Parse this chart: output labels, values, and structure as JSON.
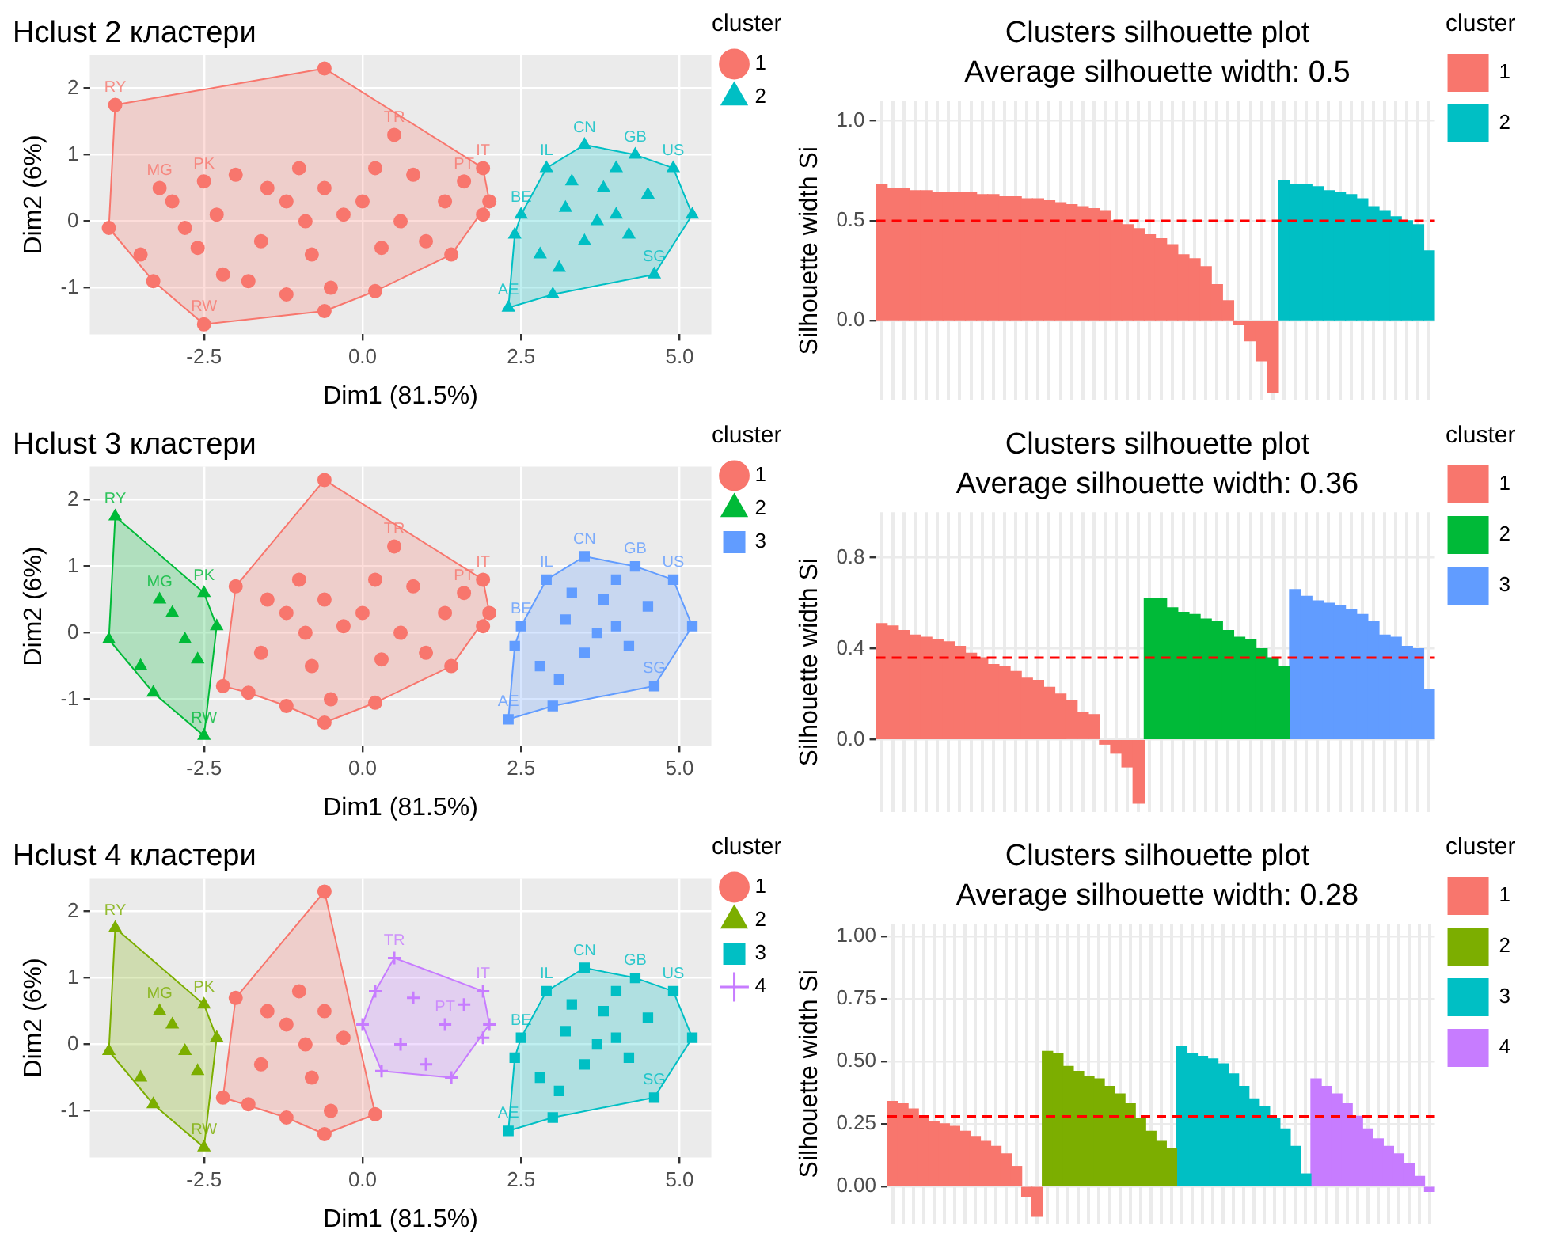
{
  "chart_data": [
    {
      "type": "scatter",
      "title": "Hclust 2 кластери",
      "xlabel": "Dim1 (81.5%)",
      "ylabel": "Dim2 (6%)",
      "legend_title": "cluster",
      "legend": "right",
      "grid": true,
      "xlim": [
        -4.3,
        5.5
      ],
      "xticks": [
        {
          "value": -2.5,
          "label": "-2.5"
        },
        {
          "value": 0,
          "label": "0.0"
        },
        {
          "value": 2.5,
          "label": "2.5"
        },
        {
          "value": 5,
          "label": "5.0"
        }
      ],
      "ylim": [
        -1.7,
        2.5
      ],
      "yticks": [
        -1,
        0,
        1,
        2
      ],
      "series": [
        {
          "type": "area",
          "color": "#f8766d",
          "x": [
            -3.9,
            -0.6,
            1.9,
            2.0,
            1.4,
            0.2,
            -0.6,
            -2.5,
            -3.3,
            -4.0,
            -3.9
          ],
          "values": [
            1.75,
            2.3,
            0.8,
            0.3,
            -0.5,
            -1.05,
            -1.35,
            -1.55,
            -0.9,
            -0.1,
            1.75
          ]
        },
        {
          "type": "area",
          "color": "#00bfc4",
          "x": [
            2.9,
            3.5,
            4.3,
            4.9,
            5.2,
            4.6,
            3.0,
            2.3,
            2.4,
            2.5,
            2.9
          ],
          "values": [
            0.8,
            1.15,
            1.0,
            0.8,
            0.1,
            -0.8,
            -1.1,
            -1.3,
            -0.2,
            0.1,
            0.8
          ]
        },
        {
          "name": "1",
          "color": "#f8766d",
          "marker": "circle",
          "x": [
            -3.9,
            -0.6,
            0.5,
            1.9,
            2.0,
            1.9,
            1.4,
            0.2,
            -0.6,
            -2.5,
            -3.3,
            -4.0,
            -3.5,
            -3.2,
            -3.0,
            -2.8,
            -2.5,
            -2.3,
            -2.2,
            -2.0,
            -1.8,
            -1.5,
            -1.2,
            -1.2,
            -1.0,
            -0.9,
            -0.8,
            -0.6,
            -0.5,
            -0.3,
            0.0,
            0.2,
            0.3,
            0.6,
            0.8,
            1.0,
            1.3,
            1.6,
            -1.6,
            -2.6
          ],
          "values": [
            1.75,
            2.3,
            1.3,
            0.8,
            0.3,
            0.1,
            -0.5,
            -1.05,
            -1.35,
            -1.55,
            -0.9,
            -0.1,
            -0.5,
            0.5,
            0.3,
            -0.1,
            0.6,
            0.1,
            -0.8,
            0.7,
            -0.9,
            0.5,
            0.3,
            -1.1,
            0.8,
            0.0,
            -0.5,
            0.5,
            -1.0,
            0.1,
            0.3,
            0.8,
            -0.4,
            0.0,
            0.7,
            -0.3,
            0.3,
            0.6,
            -0.3,
            -0.4
          ]
        },
        {
          "name": "2",
          "color": "#00bfc4",
          "marker": "triangle",
          "x": [
            2.9,
            3.5,
            4.3,
            4.9,
            5.2,
            4.6,
            3.0,
            2.3,
            2.4,
            2.5,
            3.2,
            3.5,
            3.8,
            4.0,
            4.2,
            2.8,
            3.1,
            3.7,
            4.5,
            4.0,
            3.3
          ],
          "values": [
            0.8,
            1.15,
            1.0,
            0.8,
            0.1,
            -0.8,
            -1.1,
            -1.3,
            -0.2,
            0.1,
            0.2,
            -0.3,
            0.5,
            0.1,
            -0.2,
            -0.5,
            -0.7,
            0.0,
            0.4,
            0.8,
            0.6
          ]
        }
      ],
      "annotations": [
        {
          "text": "RY",
          "x": -3.9,
          "y": 1.75
        },
        {
          "text": "PK",
          "x": -2.5,
          "y": 0.6
        },
        {
          "text": "MG",
          "x": -3.2,
          "y": 0.5
        },
        {
          "text": "RW",
          "x": -2.5,
          "y": -1.55
        },
        {
          "text": "TR",
          "x": 0.5,
          "y": 1.3
        },
        {
          "text": "IT",
          "x": 1.9,
          "y": 0.8
        },
        {
          "text": "PT",
          "x": 1.6,
          "y": 0.6
        },
        {
          "text": "IL",
          "x": 2.9,
          "y": 0.8
        },
        {
          "text": "CN",
          "x": 3.5,
          "y": 1.15
        },
        {
          "text": "GB",
          "x": 4.3,
          "y": 1.0
        },
        {
          "text": "US",
          "x": 4.9,
          "y": 0.8
        },
        {
          "text": "BE",
          "x": 2.5,
          "y": 0.1
        },
        {
          "text": "AE",
          "x": 2.3,
          "y": -1.3
        },
        {
          "text": "SG",
          "x": 4.6,
          "y": -0.8
        }
      ]
    },
    {
      "type": "bar",
      "title": "Clusters silhouette plot",
      "subtitle": "Average silhouette width: 0.5",
      "ylabel": "Silhouette width Si",
      "legend_title": "cluster",
      "legend": "right",
      "grid": true,
      "tick_labels": "y",
      "categories": [
        null,
        null,
        null,
        null,
        null,
        null,
        null,
        null,
        null,
        null,
        null,
        null,
        null,
        null,
        null,
        null,
        null,
        null,
        null,
        null,
        null,
        null,
        null,
        null,
        null,
        null,
        null,
        null,
        null,
        null,
        null,
        null,
        null,
        null,
        null,
        null,
        null,
        null,
        null,
        null,
        null,
        null,
        null,
        null,
        null,
        null,
        null,
        null,
        null,
        null
      ],
      "ylim": [
        -0.4,
        1.1
      ],
      "yticks": [
        {
          "value": 0,
          "label": "0.0"
        },
        0.5,
        {
          "value": 1,
          "label": "1.0"
        }
      ],
      "ref_lines": [
        {
          "axis": "y",
          "value": 0.5,
          "color": "#ff0000",
          "line_style": "dashed"
        }
      ],
      "series": [
        {
          "name": "1",
          "color": "#f8766d",
          "values": [
            0.68,
            0.66,
            0.66,
            0.65,
            0.65,
            0.64,
            0.64,
            0.64,
            0.64,
            0.63,
            0.63,
            0.62,
            0.62,
            0.61,
            0.61,
            0.6,
            0.59,
            0.58,
            0.57,
            0.56,
            0.55,
            0.5,
            0.48,
            0.46,
            0.43,
            0.41,
            0.38,
            0.33,
            0.31,
            0.27,
            0.18,
            0.1,
            -0.02,
            -0.1,
            -0.2,
            -0.36,
            null,
            null,
            null,
            null,
            null,
            null,
            null,
            null,
            null,
            null,
            null,
            null,
            null,
            null
          ]
        },
        {
          "name": "2",
          "color": "#00bfc4",
          "values": [
            null,
            null,
            null,
            null,
            null,
            null,
            null,
            null,
            null,
            null,
            null,
            null,
            null,
            null,
            null,
            null,
            null,
            null,
            null,
            null,
            null,
            null,
            null,
            null,
            null,
            null,
            null,
            null,
            null,
            null,
            null,
            null,
            null,
            null,
            null,
            null,
            0.7,
            0.68,
            0.68,
            0.67,
            0.65,
            0.64,
            0.63,
            0.61,
            0.57,
            0.55,
            0.52,
            0.5,
            0.48,
            0.35
          ]
        }
      ]
    },
    {
      "type": "scatter",
      "title": "Hclust 3 кластери",
      "xlabel": "Dim1 (81.5%)",
      "ylabel": "Dim2 (6%)",
      "legend_title": "cluster",
      "legend": "right",
      "grid": true,
      "xlim": [
        -4.3,
        5.5
      ],
      "xticks": [
        {
          "value": -2.5,
          "label": "-2.5"
        },
        {
          "value": 0,
          "label": "0.0"
        },
        {
          "value": 2.5,
          "label": "2.5"
        },
        {
          "value": 5,
          "label": "5.0"
        }
      ],
      "ylim": [
        -1.7,
        2.5
      ],
      "yticks": [
        -1,
        0,
        1,
        2
      ],
      "series": [
        {
          "type": "area",
          "color": "#f8766d",
          "x": [
            -0.6,
            1.9,
            2.0,
            1.4,
            0.2,
            -0.6,
            -1.2,
            -1.8,
            -2.2,
            -2.0,
            -0.6
          ],
          "values": [
            2.3,
            0.8,
            0.3,
            -0.5,
            -1.05,
            -1.35,
            -1.1,
            -0.9,
            -0.8,
            0.7,
            2.3
          ]
        },
        {
          "type": "area",
          "color": "#00ba38",
          "x": [
            -3.9,
            -2.5,
            -2.3,
            -2.5,
            -3.3,
            -4.0,
            -3.9
          ],
          "values": [
            1.75,
            0.6,
            0.1,
            -1.55,
            -0.9,
            -0.1,
            1.75
          ]
        },
        {
          "type": "area",
          "color": "#619cff",
          "x": [
            2.9,
            3.5,
            4.3,
            4.9,
            5.2,
            4.6,
            3.0,
            2.3,
            2.4,
            2.5,
            2.9
          ],
          "values": [
            0.8,
            1.15,
            1.0,
            0.8,
            0.1,
            -0.8,
            -1.1,
            -1.3,
            -0.2,
            0.1,
            0.8
          ]
        },
        {
          "name": "1",
          "color": "#f8766d",
          "marker": "circle",
          "x": [
            -0.6,
            0.5,
            1.9,
            2.0,
            1.9,
            1.4,
            0.2,
            -0.6,
            -2.2,
            -2.0,
            -1.8,
            -1.5,
            -1.2,
            -1.2,
            -1.0,
            -0.9,
            -0.8,
            -0.6,
            -0.5,
            -0.3,
            0.0,
            0.2,
            0.3,
            0.6,
            0.8,
            1.0,
            1.3,
            1.6,
            -1.6
          ],
          "values": [
            2.3,
            1.3,
            0.8,
            0.3,
            0.1,
            -0.5,
            -1.05,
            -1.35,
            -0.8,
            0.7,
            -0.9,
            0.5,
            0.3,
            -1.1,
            0.8,
            0.0,
            -0.5,
            0.5,
            -1.0,
            0.1,
            0.3,
            0.8,
            -0.4,
            0.0,
            0.7,
            -0.3,
            0.3,
            0.6,
            -0.3
          ]
        },
        {
          "name": "2",
          "color": "#00ba38",
          "marker": "triangle",
          "x": [
            -3.9,
            -2.5,
            -3.3,
            -4.0,
            -3.5,
            -3.2,
            -3.0,
            -2.8,
            -2.5,
            -2.3,
            -2.6
          ],
          "values": [
            1.75,
            -1.55,
            -0.9,
            -0.1,
            -0.5,
            0.5,
            0.3,
            -0.1,
            0.6,
            0.1,
            -0.4
          ]
        },
        {
          "name": "3",
          "color": "#619cff",
          "marker": "square",
          "x": [
            2.9,
            3.5,
            4.3,
            4.9,
            5.2,
            4.6,
            3.0,
            2.3,
            2.4,
            2.5,
            3.2,
            3.5,
            3.8,
            4.0,
            4.2,
            2.8,
            3.1,
            3.7,
            4.5,
            4.0,
            3.3
          ],
          "values": [
            0.8,
            1.15,
            1.0,
            0.8,
            0.1,
            -0.8,
            -1.1,
            -1.3,
            -0.2,
            0.1,
            0.2,
            -0.3,
            0.5,
            0.1,
            -0.2,
            -0.5,
            -0.7,
            0.0,
            0.4,
            0.8,
            0.6
          ]
        }
      ],
      "annotations": [
        {
          "text": "RY",
          "x": -3.9,
          "y": 1.75
        },
        {
          "text": "PK",
          "x": -2.5,
          "y": 0.6
        },
        {
          "text": "MG",
          "x": -3.2,
          "y": 0.5
        },
        {
          "text": "RW",
          "x": -2.5,
          "y": -1.55
        },
        {
          "text": "TR",
          "x": 0.5,
          "y": 1.3
        },
        {
          "text": "IT",
          "x": 1.9,
          "y": 0.8
        },
        {
          "text": "PT",
          "x": 1.6,
          "y": 0.6
        },
        {
          "text": "IL",
          "x": 2.9,
          "y": 0.8
        },
        {
          "text": "CN",
          "x": 3.5,
          "y": 1.15
        },
        {
          "text": "GB",
          "x": 4.3,
          "y": 1.0
        },
        {
          "text": "US",
          "x": 4.9,
          "y": 0.8
        },
        {
          "text": "BE",
          "x": 2.5,
          "y": 0.1
        },
        {
          "text": "AE",
          "x": 2.3,
          "y": -1.3
        },
        {
          "text": "SG",
          "x": 4.6,
          "y": -0.8
        }
      ]
    },
    {
      "type": "bar",
      "title": "Clusters silhouette plot",
      "subtitle": "Average silhouette width: 0.36",
      "ylabel": "Silhouette width Si",
      "legend_title": "cluster",
      "legend": "right",
      "grid": true,
      "tick_labels": "y",
      "categories": [
        null,
        null,
        null,
        null,
        null,
        null,
        null,
        null,
        null,
        null,
        null,
        null,
        null,
        null,
        null,
        null,
        null,
        null,
        null,
        null,
        null,
        null,
        null,
        null,
        null,
        null,
        null,
        null,
        null,
        null,
        null,
        null,
        null,
        null,
        null,
        null,
        null,
        null,
        null,
        null,
        null,
        null,
        null,
        null,
        null,
        null,
        null,
        null,
        null,
        null
      ],
      "ylim": [
        -0.32,
        1.0
      ],
      "yticks": [
        {
          "value": 0,
          "label": "0.0"
        },
        0.4,
        0.8
      ],
      "ref_lines": [
        {
          "axis": "y",
          "value": 0.36,
          "color": "#ff0000",
          "line_style": "dashed"
        }
      ],
      "series": [
        {
          "name": "1",
          "color": "#f8766d",
          "values": [
            0.51,
            0.5,
            0.48,
            0.46,
            0.45,
            0.44,
            0.43,
            0.41,
            0.38,
            0.36,
            0.33,
            0.32,
            0.3,
            0.27,
            0.26,
            0.23,
            0.2,
            0.17,
            0.12,
            0.11,
            -0.02,
            -0.06,
            -0.12,
            -0.28,
            null,
            null,
            null,
            null,
            null,
            null,
            null,
            null,
            null,
            null,
            null,
            null,
            null,
            null,
            null,
            null,
            null,
            null,
            null,
            null,
            null,
            null,
            null,
            null,
            null,
            null
          ]
        },
        {
          "name": "2",
          "color": "#00ba38",
          "values": [
            null,
            null,
            null,
            null,
            null,
            null,
            null,
            null,
            null,
            null,
            null,
            null,
            null,
            null,
            null,
            null,
            null,
            null,
            null,
            null,
            null,
            null,
            null,
            null,
            0.62,
            0.62,
            0.58,
            0.56,
            0.55,
            0.53,
            0.52,
            0.48,
            0.45,
            0.44,
            0.4,
            0.36,
            0.32,
            null,
            null,
            null,
            null,
            null,
            null,
            null,
            null,
            null,
            null,
            null,
            null,
            null
          ]
        },
        {
          "name": "3",
          "color": "#619cff",
          "values": [
            null,
            null,
            null,
            null,
            null,
            null,
            null,
            null,
            null,
            null,
            null,
            null,
            null,
            null,
            null,
            null,
            null,
            null,
            null,
            null,
            null,
            null,
            null,
            null,
            null,
            null,
            null,
            null,
            null,
            null,
            null,
            null,
            null,
            null,
            null,
            null,
            null,
            0.66,
            0.63,
            0.61,
            0.6,
            0.59,
            0.57,
            0.55,
            0.52,
            0.46,
            0.45,
            0.41,
            0.4,
            0.22
          ]
        }
      ]
    },
    {
      "type": "scatter",
      "title": "Hclust 4 кластери",
      "xlabel": "Dim1 (81.5%)",
      "ylabel": "Dim2 (6%)",
      "legend_title": "cluster",
      "legend": "right",
      "grid": true,
      "xlim": [
        -4.3,
        5.5
      ],
      "xticks": [
        {
          "value": -2.5,
          "label": "-2.5"
        },
        {
          "value": 0,
          "label": "0.0"
        },
        {
          "value": 2.5,
          "label": "2.5"
        },
        {
          "value": 5,
          "label": "5.0"
        }
      ],
      "ylim": [
        -1.7,
        2.5
      ],
      "yticks": [
        -1,
        0,
        1,
        2
      ],
      "series": [
        {
          "type": "area",
          "color": "#f8766d",
          "x": [
            -0.6,
            0.2,
            -0.6,
            -1.2,
            -2.2,
            -2.0,
            -0.6
          ],
          "values": [
            2.3,
            -1.05,
            -1.35,
            -1.1,
            -0.8,
            0.7,
            2.3
          ]
        },
        {
          "type": "area",
          "color": "#7cae00",
          "x": [
            -3.9,
            -2.5,
            -2.3,
            -2.5,
            -3.3,
            -4.0,
            -3.9
          ],
          "values": [
            1.75,
            0.6,
            0.1,
            -1.55,
            -0.9,
            -0.1,
            1.75
          ]
        },
        {
          "type": "area",
          "color": "#00bfc4",
          "x": [
            2.9,
            3.5,
            4.3,
            4.9,
            5.2,
            4.6,
            3.0,
            2.3,
            2.4,
            2.5,
            2.9
          ],
          "values": [
            0.8,
            1.15,
            1.0,
            0.8,
            0.1,
            -0.8,
            -1.1,
            -1.3,
            -0.2,
            0.1,
            0.8
          ]
        },
        {
          "type": "area",
          "color": "#c77cff",
          "x": [
            0.5,
            1.9,
            2.0,
            1.4,
            0.3,
            0.0,
            0.2,
            0.5
          ],
          "values": [
            1.3,
            0.8,
            0.3,
            -0.5,
            -0.4,
            0.3,
            0.8,
            1.3
          ]
        },
        {
          "name": "1",
          "color": "#f8766d",
          "marker": "circle",
          "x": [
            -0.6,
            0.2,
            -0.6,
            -2.2,
            -2.0,
            -1.8,
            -1.5,
            -1.2,
            -1.2,
            -1.0,
            -0.9,
            -0.8,
            -0.6,
            -0.5,
            -0.3,
            -1.6
          ],
          "values": [
            2.3,
            -1.05,
            -1.35,
            -0.8,
            0.7,
            -0.9,
            0.5,
            0.3,
            -1.1,
            0.8,
            0.0,
            -0.5,
            0.5,
            -1.0,
            0.1,
            -0.3
          ]
        },
        {
          "name": "2",
          "color": "#7cae00",
          "marker": "triangle",
          "x": [
            -3.9,
            -2.5,
            -3.3,
            -4.0,
            -3.5,
            -3.2,
            -3.0,
            -2.8,
            -2.5,
            -2.3,
            -2.6
          ],
          "values": [
            1.75,
            -1.55,
            -0.9,
            -0.1,
            -0.5,
            0.5,
            0.3,
            -0.1,
            0.6,
            0.1,
            -0.4
          ]
        },
        {
          "name": "3",
          "color": "#00bfc4",
          "marker": "square",
          "x": [
            2.9,
            3.5,
            4.3,
            4.9,
            5.2,
            4.6,
            3.0,
            2.3,
            2.4,
            2.5,
            3.2,
            3.5,
            3.8,
            4.0,
            4.2,
            2.8,
            3.1,
            3.7,
            4.5,
            4.0,
            3.3
          ],
          "values": [
            0.8,
            1.15,
            1.0,
            0.8,
            0.1,
            -0.8,
            -1.1,
            -1.3,
            -0.2,
            0.1,
            0.2,
            -0.3,
            0.5,
            0.1,
            -0.2,
            -0.5,
            -0.7,
            0.0,
            0.4,
            0.8,
            0.6
          ]
        },
        {
          "name": "4",
          "color": "#c77cff",
          "marker": "cross",
          "x": [
            0.5,
            1.9,
            2.0,
            1.9,
            1.4,
            0.0,
            0.2,
            0.3,
            0.6,
            0.8,
            1.0,
            1.3,
            1.6
          ],
          "values": [
            1.3,
            0.8,
            0.3,
            0.1,
            -0.5,
            0.3,
            0.8,
            -0.4,
            0.0,
            0.7,
            -0.3,
            0.3,
            0.6
          ]
        }
      ],
      "annotations": [
        {
          "text": "RY",
          "x": -3.9,
          "y": 1.75
        },
        {
          "text": "PK",
          "x": -2.5,
          "y": 0.6
        },
        {
          "text": "MG",
          "x": -3.2,
          "y": 0.5
        },
        {
          "text": "RW",
          "x": -2.5,
          "y": -1.55
        },
        {
          "text": "TR",
          "x": 0.5,
          "y": 1.3
        },
        {
          "text": "IT",
          "x": 1.9,
          "y": 0.8
        },
        {
          "text": "PT",
          "x": 1.3,
          "y": 0.3
        },
        {
          "text": "IL",
          "x": 2.9,
          "y": 0.8
        },
        {
          "text": "CN",
          "x": 3.5,
          "y": 1.15
        },
        {
          "text": "GB",
          "x": 4.3,
          "y": 1.0
        },
        {
          "text": "US",
          "x": 4.9,
          "y": 0.8
        },
        {
          "text": "BE",
          "x": 2.5,
          "y": 0.1
        },
        {
          "text": "AE",
          "x": 2.3,
          "y": -1.3
        },
        {
          "text": "SG",
          "x": 4.6,
          "y": -0.8
        }
      ]
    },
    {
      "type": "bar",
      "title": "Clusters silhouette plot",
      "subtitle": "Average silhouette width: 0.28",
      "ylabel": "Silhouette width Si",
      "legend_title": "cluster",
      "legend": "right",
      "grid": true,
      "tick_labels": "y",
      "categories": [
        null,
        null,
        null,
        null,
        null,
        null,
        null,
        null,
        null,
        null,
        null,
        null,
        null,
        null,
        null,
        null,
        null,
        null,
        null,
        null,
        null,
        null,
        null,
        null,
        null,
        null,
        null,
        null,
        null,
        null,
        null,
        null,
        null,
        null,
        null,
        null,
        null,
        null,
        null,
        null,
        null,
        null,
        null,
        null,
        null,
        null,
        null,
        null,
        null,
        null,
        null,
        null,
        null
      ],
      "ylim": [
        -0.15,
        1.05
      ],
      "yticks": [
        {
          "value": 0,
          "label": "0.00"
        },
        0.25,
        {
          "value": 0.5,
          "label": "0.50"
        },
        0.75,
        {
          "value": 1,
          "label": "1.00"
        }
      ],
      "ref_lines": [
        {
          "axis": "y",
          "value": 0.28,
          "color": "#ff0000",
          "line_style": "dashed"
        }
      ],
      "series": [
        {
          "name": "1",
          "color": "#f8766d",
          "values": [
            0.34,
            0.33,
            0.31,
            0.28,
            0.26,
            0.25,
            0.24,
            0.22,
            0.2,
            0.18,
            0.16,
            0.13,
            0.08,
            -0.04,
            -0.12,
            null,
            null,
            null,
            null,
            null,
            null,
            null,
            null,
            null,
            null,
            null,
            null,
            null,
            null,
            null,
            null,
            null,
            null,
            null,
            null,
            null,
            null,
            null,
            null,
            null,
            null,
            null,
            null,
            null,
            null,
            null,
            null,
            null,
            null,
            null,
            null,
            null,
            null
          ]
        },
        {
          "name": "2",
          "color": "#7cae00",
          "values": [
            null,
            null,
            null,
            null,
            null,
            null,
            null,
            null,
            null,
            null,
            null,
            null,
            null,
            null,
            null,
            0.54,
            0.53,
            0.48,
            0.46,
            0.44,
            0.43,
            0.4,
            0.37,
            0.33,
            0.27,
            0.22,
            0.18,
            0.15,
            null,
            null,
            null,
            null,
            null,
            null,
            null,
            null,
            null,
            null,
            null,
            null,
            null,
            null,
            null,
            null,
            null,
            null,
            null,
            null,
            null,
            null,
            null,
            null,
            null
          ]
        },
        {
          "name": "3",
          "color": "#00bfc4",
          "values": [
            null,
            null,
            null,
            null,
            null,
            null,
            null,
            null,
            null,
            null,
            null,
            null,
            null,
            null,
            null,
            null,
            null,
            null,
            null,
            null,
            null,
            null,
            null,
            null,
            null,
            null,
            null,
            null,
            0.56,
            0.53,
            0.52,
            0.51,
            0.49,
            0.45,
            0.4,
            0.35,
            0.32,
            0.27,
            0.23,
            0.16,
            0.05,
            null,
            null,
            null,
            null,
            null,
            null,
            null,
            null,
            null,
            null,
            null,
            null
          ]
        },
        {
          "name": "4",
          "color": "#c77cff",
          "values": [
            null,
            null,
            null,
            null,
            null,
            null,
            null,
            null,
            null,
            null,
            null,
            null,
            null,
            null,
            null,
            null,
            null,
            null,
            null,
            null,
            null,
            null,
            null,
            null,
            null,
            null,
            null,
            null,
            null,
            null,
            null,
            null,
            null,
            null,
            null,
            null,
            null,
            null,
            null,
            null,
            null,
            0.43,
            0.4,
            0.37,
            0.33,
            0.28,
            0.23,
            0.19,
            0.16,
            0.13,
            0.09,
            0.04,
            -0.02
          ]
        }
      ]
    }
  ]
}
